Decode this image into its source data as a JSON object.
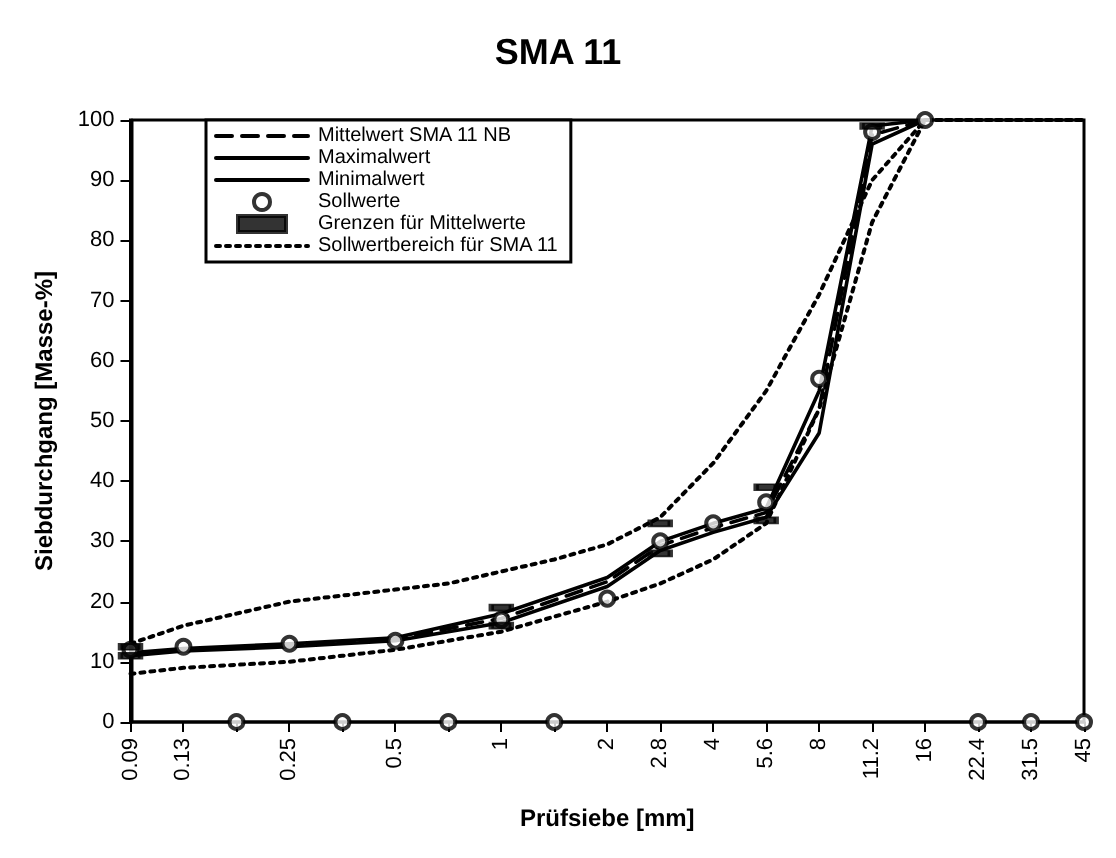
{
  "chart_data": {
    "type": "line",
    "title": "SMA 11",
    "xlabel": "Prüfsiebe [mm]",
    "ylabel": "Siebdurchgang [Masse-%]",
    "categories": [
      "0.09",
      "0.13",
      null,
      "0.25",
      null,
      "0.5",
      null,
      "1",
      null,
      "2",
      "2.8",
      "4",
      "5.6",
      "8",
      "11.2",
      "16",
      "22.4",
      "31.5",
      "45"
    ],
    "ylim": [
      0,
      100
    ],
    "yticks": [
      0,
      10,
      20,
      30,
      40,
      50,
      60,
      70,
      80,
      90,
      100
    ],
    "grid": false,
    "legend": "top left",
    "series": [
      {
        "name": "Mittelwert SMA 11 NB",
        "color": "#000000",
        "line_style": "dashed",
        "values": [
          11.3,
          12,
          null,
          12.8,
          null,
          13.8,
          null,
          17.2,
          null,
          23.3,
          29.3,
          32.3,
          34.8,
          52,
          97.5,
          100,
          null,
          null,
          null
        ]
      },
      {
        "name": "Maximalwert",
        "color": "#000000",
        "line_style": "solid",
        "values": [
          11.5,
          12.2,
          null,
          13,
          null,
          14,
          null,
          18,
          null,
          24,
          30,
          33,
          35.5,
          55,
          99,
          100,
          null,
          null,
          null
        ]
      },
      {
        "name": "Minimalwert",
        "color": "#000000",
        "line_style": "solid",
        "values": [
          11,
          11.8,
          null,
          12.5,
          null,
          13.5,
          null,
          16.5,
          null,
          22.5,
          28.5,
          31.5,
          34,
          48,
          96,
          100,
          null,
          null,
          null
        ]
      },
      {
        "name": "Sollwerte",
        "type": "scatter",
        "marker": "circle",
        "color": "#000000",
        "values": [
          12,
          12.5,
          0,
          13,
          0,
          13.5,
          0,
          17,
          0,
          20.5,
          30,
          33,
          36.5,
          57,
          98,
          100,
          0,
          0,
          0
        ]
      },
      {
        "name": "Grenzen für Mittelwerte",
        "type": "scatter",
        "marker": "square",
        "color": "#000000",
        "x": [
          "0.09",
          "0.09",
          "1",
          "1",
          "2.8",
          "2.8",
          "5.6",
          "5.6",
          "11.2"
        ],
        "values": [
          12.5,
          11,
          19,
          16,
          33,
          28,
          39,
          33.5,
          99
        ]
      },
      {
        "name": "Sollwertbereich für SMA 11",
        "color": "#000000",
        "line_style": "dotted",
        "values": [
          13,
          16,
          18,
          20,
          21,
          22,
          23,
          25,
          27,
          29.5,
          34,
          43,
          55,
          71,
          90,
          100,
          100,
          100,
          100
        ]
      },
      {
        "color": "#000000",
        "line_style": "dotted",
        "values": [
          8,
          9,
          9.5,
          10,
          11,
          12,
          13.5,
          15,
          17.5,
          20,
          23,
          27,
          33,
          52,
          83,
          100,
          100,
          100,
          100
        ]
      }
    ]
  }
}
